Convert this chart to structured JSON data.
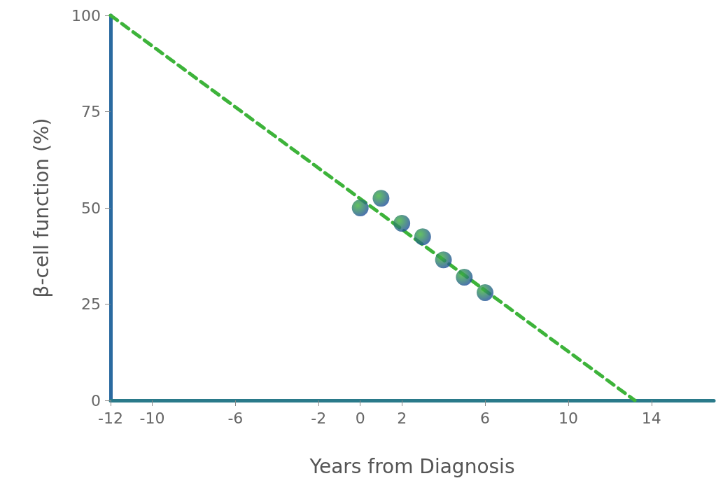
{
  "chart_data": {
    "type": "scatter",
    "xlabel": "Years from Diagnosis",
    "ylabel": "β-cell function (%)",
    "xlim": [
      -12,
      17
    ],
    "xticks": [
      -12,
      -10,
      -6,
      -2,
      0,
      2,
      6,
      10,
      14
    ],
    "ylim": [
      0,
      100
    ],
    "yticks": [
      0,
      25,
      50,
      75,
      100
    ],
    "grid": false,
    "series": [
      {
        "type": "line",
        "color": "#3db33a",
        "x": [
          -12,
          13.2
        ],
        "values": [
          100,
          0
        ],
        "marker": "none",
        "line_style": "dashed"
      },
      {
        "color": "#1f4e9c",
        "x": [
          0,
          1,
          2,
          3,
          4,
          5,
          6
        ],
        "values": [
          50,
          52.5,
          46,
          42.5,
          36.5,
          32,
          28
        ],
        "marker": "circle"
      }
    ]
  }
}
